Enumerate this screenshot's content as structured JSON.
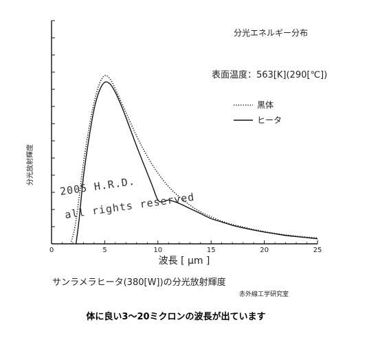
{
  "chart_data": {
    "type": "line",
    "title": "分光エネルギー分布",
    "annotation": "表面温度：563[K](290[℃])",
    "xlabel": "波長 [ μm ]",
    "ylabel": "分光放射輝度",
    "xlim": [
      0,
      25
    ],
    "x_ticks": [
      "0",
      "5",
      "10",
      "15",
      "20",
      "25"
    ],
    "y_scale": "arbitrary (no tick labels)",
    "grid": false,
    "legend_position": "right, below annotation",
    "series": [
      {
        "name": "黒体",
        "style": "dotted",
        "x": [
          1.8,
          2.2,
          2.6,
          3.0,
          3.5,
          4.0,
          4.5,
          5.0,
          5.5,
          6.0,
          6.5,
          7.0,
          8.0,
          9.0,
          10.0,
          11.0,
          12.0,
          13.0,
          14.0,
          15.0,
          16.0,
          17.0,
          18.0,
          19.0,
          20.0,
          21.0,
          22.0,
          23.0,
          24.0,
          25.0
        ],
        "y": [
          0.0,
          0.1,
          0.28,
          0.48,
          0.68,
          0.84,
          0.95,
          1.0,
          0.98,
          0.92,
          0.85,
          0.78,
          0.64,
          0.52,
          0.42,
          0.34,
          0.28,
          0.23,
          0.19,
          0.16,
          0.135,
          0.115,
          0.1,
          0.085,
          0.073,
          0.062,
          0.053,
          0.046,
          0.04,
          0.035
        ]
      },
      {
        "name": "ヒータ",
        "style": "solid",
        "x": [
          2.3,
          2.6,
          3.0,
          3.5,
          4.0,
          4.5,
          5.0,
          5.5,
          6.0,
          6.5,
          7.0,
          8.0,
          9.0,
          9.5,
          10.0,
          10.5,
          11.0,
          12.0,
          13.0,
          14.0,
          15.0,
          16.0,
          17.0,
          18.0,
          19.0,
          20.0,
          21.0,
          22.0,
          23.0,
          24.0,
          25.0
        ],
        "y": [
          0.0,
          0.15,
          0.4,
          0.62,
          0.8,
          0.91,
          0.96,
          0.95,
          0.9,
          0.83,
          0.75,
          0.58,
          0.42,
          0.34,
          0.26,
          0.25,
          0.26,
          0.24,
          0.21,
          0.18,
          0.15,
          0.13,
          0.11,
          0.095,
          0.082,
          0.07,
          0.06,
          0.05,
          0.043,
          0.037,
          0.03
        ]
      }
    ]
  },
  "watermark": {
    "line1": "2005 H.R.D.",
    "line2": "all rights reserved"
  },
  "footer": {
    "subtitle": "サンラメラヒータ(380[W])の分光放射輝度",
    "lab": "赤外線工学研究室",
    "caption": "体に良い3〜20ミクロンの波長が出ています"
  },
  "colors": {
    "ink": "#111111",
    "background": "#ffffff"
  }
}
